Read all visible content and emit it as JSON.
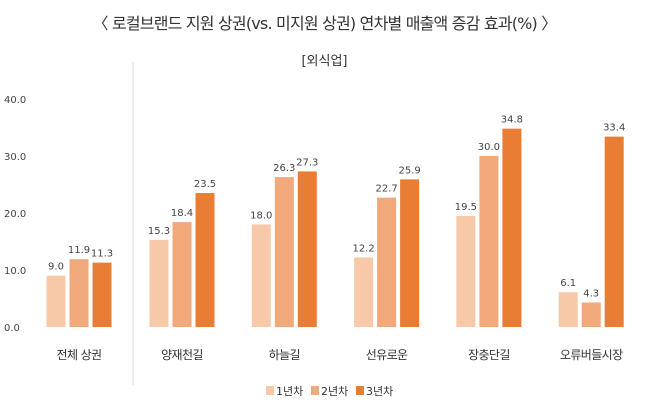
{
  "chart_data": {
    "type": "bar",
    "title": "〈 로컬브랜드 지원 상권(vs. 미지원 상권) 연차별 매출액 증감 효과(%) 〉",
    "subtitle": "[외식업]",
    "categories": [
      "전체 상권",
      "양재천길",
      "하늘길",
      "선유로운",
      "장충단길",
      "오류버들시장"
    ],
    "series": [
      {
        "name": "1년차",
        "color": "#f7c9a9",
        "values": [
          9.0,
          15.3,
          18.0,
          12.2,
          19.5,
          6.1
        ]
      },
      {
        "name": "2년차",
        "color": "#f1a87a",
        "values": [
          11.9,
          18.4,
          26.3,
          22.7,
          30.0,
          4.3
        ]
      },
      {
        "name": "3년차",
        "color": "#ea7d34",
        "values": [
          11.3,
          23.5,
          27.3,
          25.9,
          34.8,
          33.4
        ]
      }
    ],
    "yticks": [
      "0.0",
      "10.0",
      "20.0",
      "30.0",
      "40.0"
    ],
    "ylim": [
      0,
      40
    ],
    "grid": false,
    "legend_position": "bottom",
    "xlabel": "",
    "ylabel": ""
  }
}
